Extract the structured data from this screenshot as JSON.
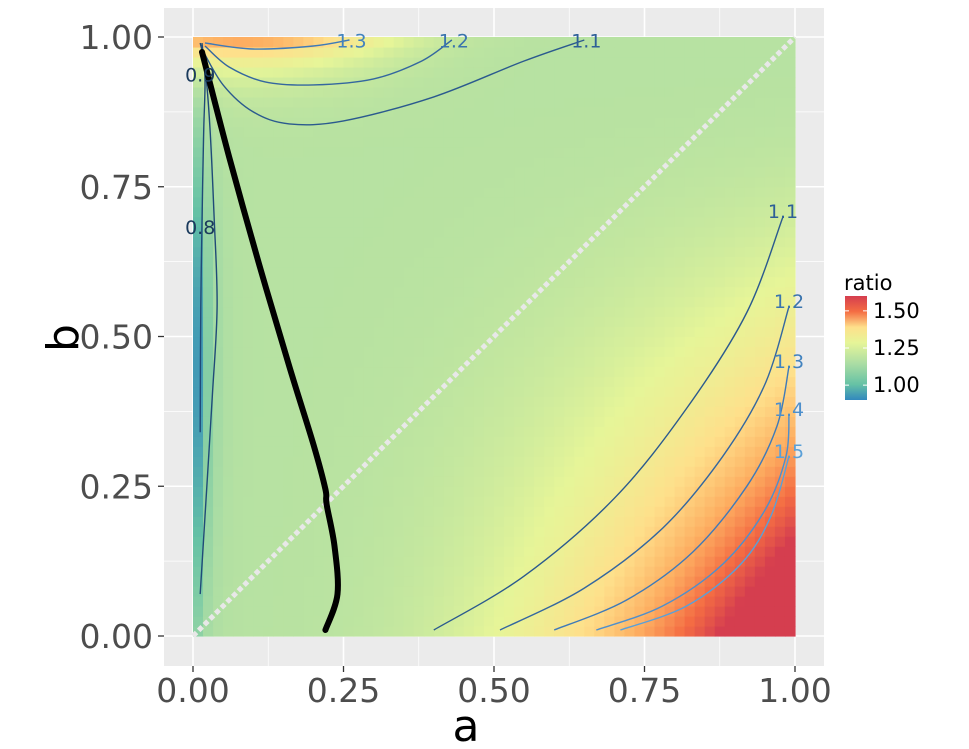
{
  "chart_data": {
    "type": "heatmap",
    "title": "",
    "xlabel": "a",
    "ylabel": "b",
    "xlim": [
      0,
      1
    ],
    "ylim": [
      0,
      1
    ],
    "x_ticks": [
      "0.00",
      "0.25",
      "0.50",
      "0.75",
      "1.00"
    ],
    "y_ticks": [
      "0.00",
      "0.25",
      "0.50",
      "0.75",
      "1.00"
    ],
    "x_tick_values": [
      0,
      0.25,
      0.5,
      0.75,
      1.0
    ],
    "y_tick_values": [
      0,
      0.25,
      0.5,
      0.75,
      1.0
    ],
    "grid": true,
    "legend": {
      "title": "ratio",
      "placement": "right",
      "labels": [
        "1.50",
        "1.25",
        "1.00"
      ],
      "values": [
        1.5,
        1.25,
        1.0
      ],
      "range": [
        0.9,
        1.6
      ]
    },
    "palette": [
      "#3288bd",
      "#66c2a5",
      "#abdda4",
      "#e6f598",
      "#fee08b",
      "#fdae61",
      "#f46d43",
      "#d53e4f"
    ],
    "contours": [
      {
        "label": "0.8",
        "level": 0.8,
        "points": [
          [
            0.012,
            0.34
          ],
          [
            0.013,
            0.55
          ],
          [
            0.016,
            0.75
          ],
          [
            0.018,
            0.85
          ],
          [
            0.02,
            0.93
          ],
          [
            0.015,
            0.99
          ]
        ]
      },
      {
        "label": "0.9",
        "level": 0.9,
        "points": [
          [
            0.012,
            0.07
          ],
          [
            0.02,
            0.2
          ],
          [
            0.032,
            0.4
          ],
          [
            0.04,
            0.55
          ],
          [
            0.035,
            0.7
          ],
          [
            0.028,
            0.85
          ],
          [
            0.02,
            0.95
          ],
          [
            0.012,
            0.99
          ]
        ]
      },
      {
        "label": "1.3",
        "level": 1.3,
        "points": [
          [
            0.02,
            0.99
          ],
          [
            0.1,
            0.98
          ],
          [
            0.2,
            0.985
          ],
          [
            0.26,
            0.995
          ]
        ]
      },
      {
        "label": "1.2",
        "level": 1.2,
        "points": [
          [
            0.02,
            0.985
          ],
          [
            0.06,
            0.95
          ],
          [
            0.12,
            0.925
          ],
          [
            0.2,
            0.92
          ],
          [
            0.3,
            0.93
          ],
          [
            0.38,
            0.96
          ],
          [
            0.43,
            0.995
          ]
        ]
      },
      {
        "label": "1.1",
        "level": 1.1,
        "points": [
          [
            0.015,
            0.98
          ],
          [
            0.05,
            0.92
          ],
          [
            0.1,
            0.875
          ],
          [
            0.16,
            0.855
          ],
          [
            0.25,
            0.86
          ],
          [
            0.4,
            0.9
          ],
          [
            0.55,
            0.96
          ],
          [
            0.65,
            0.995
          ]
        ]
      },
      {
        "label": "1.1",
        "level": 1.1,
        "points": [
          [
            0.4,
            0.01
          ],
          [
            0.55,
            0.1
          ],
          [
            0.7,
            0.23
          ],
          [
            0.82,
            0.38
          ],
          [
            0.92,
            0.54
          ],
          [
            0.98,
            0.7
          ]
        ]
      },
      {
        "label": "1.2",
        "level": 1.2,
        "points": [
          [
            0.51,
            0.01
          ],
          [
            0.65,
            0.08
          ],
          [
            0.78,
            0.18
          ],
          [
            0.88,
            0.3
          ],
          [
            0.95,
            0.42
          ],
          [
            0.99,
            0.55
          ]
        ]
      },
      {
        "label": "1.3",
        "level": 1.3,
        "points": [
          [
            0.6,
            0.01
          ],
          [
            0.72,
            0.06
          ],
          [
            0.83,
            0.14
          ],
          [
            0.92,
            0.25
          ],
          [
            0.97,
            0.35
          ],
          [
            0.99,
            0.45
          ]
        ]
      },
      {
        "label": "1.4",
        "level": 1.4,
        "points": [
          [
            0.67,
            0.01
          ],
          [
            0.78,
            0.05
          ],
          [
            0.88,
            0.12
          ],
          [
            0.95,
            0.21
          ],
          [
            0.985,
            0.3
          ],
          [
            0.99,
            0.37
          ]
        ]
      },
      {
        "label": "1.5",
        "level": 1.5,
        "points": [
          [
            0.71,
            0.01
          ],
          [
            0.82,
            0.05
          ],
          [
            0.91,
            0.12
          ],
          [
            0.96,
            0.2
          ],
          [
            0.99,
            0.3
          ]
        ]
      }
    ],
    "thick_curve": {
      "points": [
        [
          0.015,
          0.975
        ],
        [
          0.06,
          0.8
        ],
        [
          0.11,
          0.62
        ],
        [
          0.16,
          0.45
        ],
        [
          0.2,
          0.32
        ],
        [
          0.22,
          0.245
        ],
        [
          0.222,
          0.22
        ],
        [
          0.235,
          0.15
        ],
        [
          0.24,
          0.07
        ],
        [
          0.22,
          0.01
        ]
      ]
    },
    "diagonal": {
      "from": [
        0.0,
        0.0
      ],
      "to": [
        1.0,
        1.0
      ],
      "style": "dotted"
    }
  }
}
